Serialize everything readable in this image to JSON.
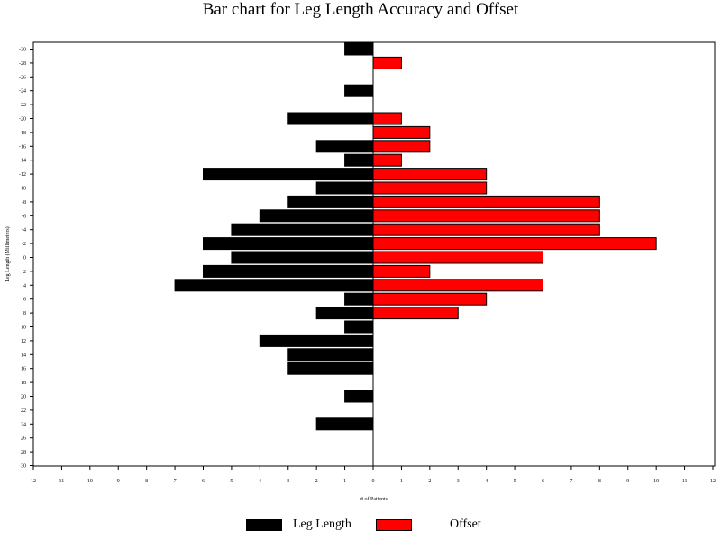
{
  "chart_data": {
    "type": "bar",
    "orientation": "horizontal",
    "title": "Bar chart for Leg Length Accuracy and Offset",
    "xlabel": "# of Patients",
    "ylabel": "Leg Length (Millimeters)",
    "xlim": [
      -12,
      12
    ],
    "x_ticks": [
      12,
      11,
      10,
      9,
      8,
      7,
      6,
      5,
      4,
      3,
      2,
      1,
      0,
      1,
      2,
      3,
      4,
      5,
      6,
      7,
      8,
      9,
      10,
      11,
      12
    ],
    "categories": [
      "-30",
      "-28",
      "-26",
      "-24",
      "-22",
      "-20",
      "-18",
      "-16",
      "-14",
      "-12",
      "-10",
      "-8",
      "-6",
      "-4",
      "-2",
      "0",
      "2",
      "4",
      "6",
      "8",
      "10",
      "12",
      "14",
      "16",
      "18",
      "20",
      "22",
      "24",
      "26",
      "28",
      "30"
    ],
    "series": [
      {
        "name": "Leg Length",
        "color": "#000000",
        "direction": "left",
        "values": [
          1,
          0,
          0,
          1,
          0,
          3,
          0,
          2,
          1,
          6,
          2,
          3,
          4,
          5,
          6,
          5,
          6,
          7,
          1,
          2,
          1,
          4,
          3,
          3,
          0,
          1,
          0,
          2,
          0,
          0,
          0
        ]
      },
      {
        "name": "Offset",
        "color": "#ff0000",
        "direction": "right",
        "values": [
          0,
          1,
          0,
          0,
          0,
          1,
          2,
          2,
          1,
          4,
          4,
          8,
          8,
          8,
          10,
          6,
          2,
          6,
          4,
          3,
          0,
          0,
          0,
          0,
          0,
          0,
          0,
          0,
          0,
          0,
          0
        ]
      }
    ],
    "grid": false,
    "legend_position": "bottom"
  }
}
